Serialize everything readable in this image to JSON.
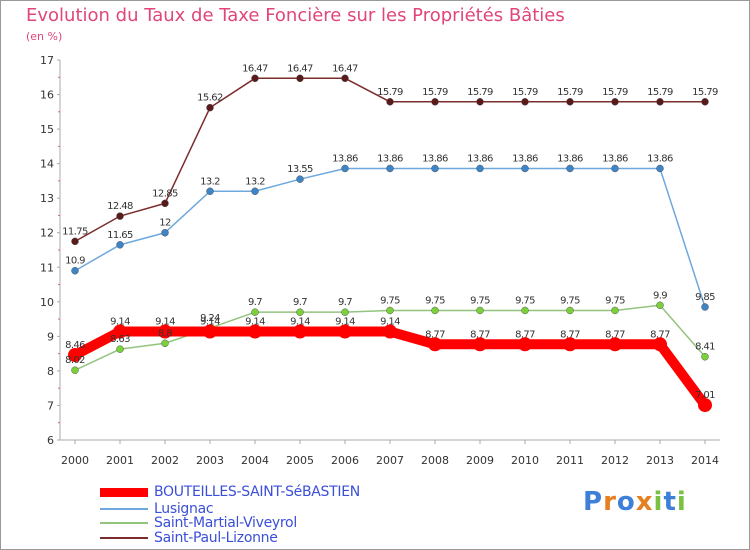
{
  "chart_data": {
    "type": "line",
    "title": "Evolution du Taux de Taxe Foncière sur les Propriétés Bâties",
    "unit_label": "(en %)",
    "xlabel": "",
    "ylabel": "",
    "ylim": [
      6,
      17
    ],
    "yticks": [
      6,
      7,
      8,
      9,
      10,
      11,
      12,
      13,
      14,
      15,
      16,
      17
    ],
    "categories": [
      "2000",
      "2001",
      "2002",
      "2003",
      "2004",
      "2005",
      "2006",
      "2007",
      "2008",
      "2009",
      "2010",
      "2011",
      "2012",
      "2013",
      "2014"
    ],
    "grid": false,
    "legend_position": "bottom-left",
    "series": [
      {
        "name": "BOUTEILLES-SAINT-SéBASTIEN",
        "color": "#ff0000",
        "point_color": "#ff0000",
        "thick": true,
        "values": [
          8.46,
          9.14,
          9.14,
          9.14,
          9.14,
          9.14,
          9.14,
          9.14,
          8.77,
          8.77,
          8.77,
          8.77,
          8.77,
          8.77,
          7.01
        ],
        "labels": [
          "8.46",
          "9.14",
          "9.14",
          "9.14",
          "9.14",
          "9.14",
          "9.14",
          "9.14",
          "8.77",
          "8.77",
          "8.77",
          "8.77",
          "8.77",
          "8.77",
          "7.01"
        ]
      },
      {
        "name": "Lusignac",
        "color": "#6fa8dc",
        "point_color": "#3d85c6",
        "thick": false,
        "values": [
          10.9,
          11.65,
          12,
          13.2,
          13.2,
          13.55,
          13.86,
          13.86,
          13.86,
          13.86,
          13.86,
          13.86,
          13.86,
          13.86,
          9.85
        ],
        "labels": [
          "10.9",
          "11.65",
          "12",
          "13.2",
          "13.2",
          "13.55",
          "13.86",
          "13.86",
          "13.86",
          "13.86",
          "13.86",
          "13.86",
          "13.86",
          "13.86",
          "9.85"
        ]
      },
      {
        "name": "Saint-Martial-Viveyrol",
        "color": "#93c47d",
        "point_color": "#7ad13a",
        "thick": false,
        "values": [
          8.02,
          8.63,
          8.8,
          9.24,
          9.7,
          9.7,
          9.7,
          9.75,
          9.75,
          9.75,
          9.75,
          9.75,
          9.75,
          9.9,
          8.41
        ],
        "labels": [
          "8.02",
          "8.63",
          "8.8",
          "9.24",
          "9.7",
          "9.7",
          "9.7",
          "9.75",
          "9.75",
          "9.75",
          "9.75",
          "9.75",
          "9.75",
          "9.9",
          "8.41"
        ]
      },
      {
        "name": "Saint-Paul-Lizonne",
        "color": "#7b2c2c",
        "point_color": "#5a1a1a",
        "thick": false,
        "values": [
          11.75,
          12.48,
          12.85,
          15.62,
          16.47,
          16.47,
          16.47,
          15.79,
          15.79,
          15.79,
          15.79,
          15.79,
          15.79,
          15.79,
          15.79
        ],
        "labels": [
          "11.75",
          "12.48",
          "12.85",
          "15.62",
          "16.47",
          "16.47",
          "16.47",
          "15.79",
          "15.79",
          "15.79",
          "15.79",
          "15.79",
          "15.79",
          "15.79",
          "15.79"
        ]
      }
    ]
  },
  "logo": {
    "text": "Proxiti",
    "letters": [
      "P",
      "r",
      "o",
      "x",
      "i",
      "t",
      "i"
    ]
  }
}
